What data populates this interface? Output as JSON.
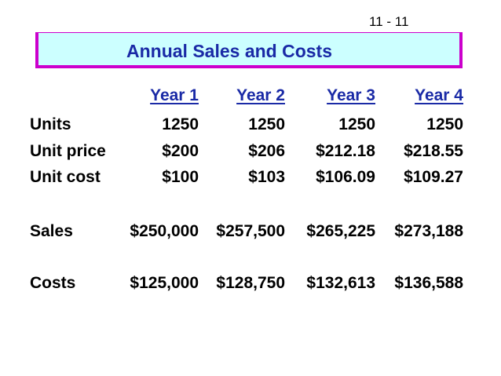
{
  "page_number": "11 - 11",
  "title": "Annual Sales and Costs",
  "colors": {
    "title_text": "#1a2aa6",
    "title_bg": "#ccffff",
    "title_border": "#cc00cc"
  },
  "columns": [
    "Year 1",
    "Year 2",
    "Year 3",
    "Year 4"
  ],
  "rows": [
    {
      "label": "Units",
      "values": [
        "1250",
        "1250",
        "1250",
        "1250"
      ]
    },
    {
      "label": "Unit price",
      "values": [
        "$200",
        "$206",
        "$212.18",
        "$218.55"
      ]
    },
    {
      "label": "Unit cost",
      "values": [
        "$100",
        "$103",
        "$106.09",
        "$109.27"
      ]
    },
    {
      "label": "Sales",
      "values": [
        "$250,000",
        "$257,500",
        "$265,225",
        "$273,188"
      ]
    },
    {
      "label": "Costs",
      "values": [
        "$125,000",
        "$128,750",
        "$132,613",
        "$136,588"
      ]
    }
  ]
}
